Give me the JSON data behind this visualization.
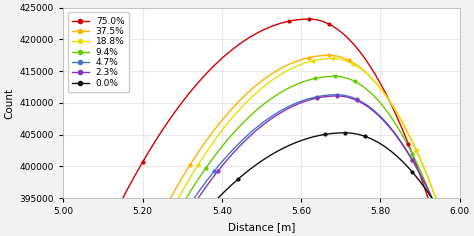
{
  "title": "",
  "xlabel": "Distance [m]",
  "ylabel": "Count",
  "xlim": [
    5.0,
    6.0
  ],
  "ylim": [
    395000,
    425000
  ],
  "xticks": [
    5.0,
    5.2,
    5.4,
    5.6,
    5.8,
    6.0
  ],
  "yticks": [
    395000,
    400000,
    405000,
    410000,
    415000,
    420000,
    425000
  ],
  "series": [
    {
      "label": "75.0%",
      "color": "#d00000",
      "peak_x": 5.62,
      "peak_y": 423200,
      "left_x": 5.15,
      "right_x": 5.92,
      "marker": "s"
    },
    {
      "label": "37.5%",
      "color": "#ffb300",
      "peak_x": 5.67,
      "peak_y": 417500,
      "left_x": 5.27,
      "right_x": 5.94,
      "marker": "+"
    },
    {
      "label": "18.8%",
      "color": "#e8e000",
      "peak_x": 5.68,
      "peak_y": 417000,
      "left_x": 5.29,
      "right_x": 5.94,
      "marker": "o"
    },
    {
      "label": "9.4%",
      "color": "#66cc00",
      "peak_x": 5.685,
      "peak_y": 414200,
      "left_x": 5.31,
      "right_x": 5.93,
      "marker": "o"
    },
    {
      "label": "4.7%",
      "color": "#4477cc",
      "peak_x": 5.69,
      "peak_y": 411300,
      "left_x": 5.33,
      "right_x": 5.93,
      "marker": "s"
    },
    {
      "label": "2.3%",
      "color": "#8833bb",
      "peak_x": 5.69,
      "peak_y": 411100,
      "left_x": 5.34,
      "right_x": 5.93,
      "marker": "o"
    },
    {
      "label": "0.0%",
      "color": "#111111",
      "peak_x": 5.71,
      "peak_y": 405300,
      "left_x": 5.39,
      "right_x": 5.93,
      "marker": "s"
    }
  ],
  "background_color": "#f2f2f2",
  "plot_bg": "#ffffff",
  "grid_color": "#e8e8e8",
  "legend_fontsize": 6.5,
  "axis_fontsize": 7.5,
  "tick_fontsize": 6.5
}
